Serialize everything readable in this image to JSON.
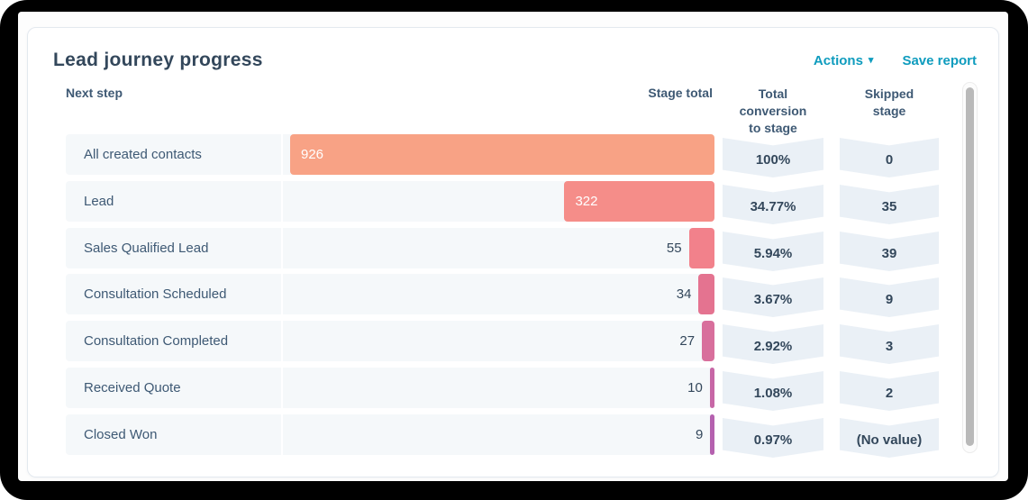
{
  "report": {
    "title": "Lead journey progress",
    "actions_label": "Actions",
    "save_report_label": "Save report"
  },
  "table": {
    "headers": {
      "next_step": "Next step",
      "stage_total": "Stage total",
      "total_conversion_line1": "Total",
      "total_conversion_line2": "conversion",
      "total_conversion_line3": "to stage",
      "skipped_line1": "Skipped",
      "skipped_line2": "stage"
    }
  },
  "colors": {
    "accent_link": "#0f9cbe",
    "navy_text": "#33475b",
    "row_background": "#f5f8fa",
    "chevron_background": "#eaf0f6"
  },
  "chart_data": {
    "type": "bar",
    "title": "Lead journey progress",
    "orientation": "horizontal-right-aligned-funnel",
    "max_value": 926,
    "xlabel": "Stage total",
    "legend": "none",
    "rows": [
      {
        "label": "All created contacts",
        "value": 926,
        "value_label": "926",
        "value_inside": true,
        "bar_color": "#f8a285",
        "conversion": "100%",
        "skipped": "0"
      },
      {
        "label": "Lead",
        "value": 322,
        "value_label": "322",
        "value_inside": true,
        "bar_color": "#f58d89",
        "conversion": "34.77%",
        "skipped": "35"
      },
      {
        "label": "Sales Qualified Lead",
        "value": 55,
        "value_label": "55",
        "value_inside": false,
        "bar_color": "#f2818b",
        "conversion": "5.94%",
        "skipped": "39"
      },
      {
        "label": "Consultation Scheduled",
        "value": 34,
        "value_label": "34",
        "value_inside": false,
        "bar_color": "#e47390",
        "conversion": "3.67%",
        "skipped": "9"
      },
      {
        "label": "Consultation Completed",
        "value": 27,
        "value_label": "27",
        "value_inside": false,
        "bar_color": "#d86f9c",
        "conversion": "2.92%",
        "skipped": "3"
      },
      {
        "label": "Received Quote",
        "value": 10,
        "value_label": "10",
        "value_inside": false,
        "bar_color": "#c767a6",
        "conversion": "1.08%",
        "skipped": "2"
      },
      {
        "label": "Closed Won",
        "value": 9,
        "value_label": "9",
        "value_inside": false,
        "bar_color": "#b561af",
        "conversion": "0.97%",
        "skipped": "(No value)"
      }
    ]
  }
}
